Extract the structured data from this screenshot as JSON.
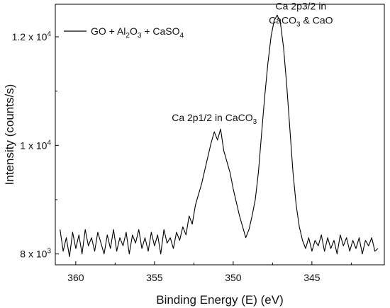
{
  "chart_data": {
    "type": "line",
    "xlabel": "Binding Energy (E) (eV)",
    "ylabel": "Intensity (counts/s)",
    "xlim": [
      361.3,
      340.4
    ],
    "ylim": [
      7800,
      12600
    ],
    "x_reversed": true,
    "xticks": [
      360,
      355,
      350,
      345
    ],
    "xtick_labels": [
      "360",
      "355",
      "350",
      "345"
    ],
    "yticks": [
      8000,
      10000,
      12000
    ],
    "ytick_labels": [
      {
        "base": "8 x 10",
        "exp": "3"
      },
      {
        "base": "1 x 10",
        "exp": "4"
      },
      {
        "base": "1.2 x 10",
        "exp": "4"
      }
    ],
    "legend": {
      "placement": "top-left",
      "label_parts": [
        {
          "text": "GO + Al",
          "sub": false
        },
        {
          "text": "2",
          "sub": true
        },
        {
          "text": "O",
          "sub": false
        },
        {
          "text": "3",
          "sub": true
        },
        {
          "text": " + CaSO",
          "sub": false
        },
        {
          "text": "4",
          "sub": true
        }
      ]
    },
    "annotations": [
      {
        "id": "ca-2p12",
        "x": 351.2,
        "y": 10450,
        "lines": [
          [
            {
              "text": "Ca 2p1/2 in CaCO",
              "sub": false
            },
            {
              "text": "3",
              "sub": true
            }
          ]
        ]
      },
      {
        "id": "ca-2p32",
        "x": 345.7,
        "y": 12500,
        "lines": [
          [
            {
              "text": "Ca 2p3/2 in",
              "sub": false
            }
          ],
          [
            {
              "text": "CaCO",
              "sub": false
            },
            {
              "text": "3",
              "sub": true
            },
            {
              "text": " & CaO",
              "sub": false
            }
          ]
        ]
      }
    ],
    "series": [
      {
        "color": "#000000",
        "x": [
          361.0,
          360.8,
          360.6,
          360.4,
          360.2,
          360.0,
          359.8,
          359.6,
          359.4,
          359.2,
          359.0,
          358.8,
          358.6,
          358.4,
          358.2,
          358.0,
          357.8,
          357.6,
          357.4,
          357.2,
          357.0,
          356.8,
          356.6,
          356.4,
          356.2,
          356.0,
          355.8,
          355.6,
          355.4,
          355.2,
          355.0,
          354.8,
          354.6,
          354.4,
          354.2,
          354.0,
          353.8,
          353.6,
          353.4,
          353.2,
          353.0,
          352.8,
          352.6,
          352.4,
          352.2,
          352.0,
          351.8,
          351.6,
          351.4,
          351.2,
          351.0,
          350.8,
          350.6,
          350.4,
          350.2,
          350.0,
          349.8,
          349.6,
          349.4,
          349.2,
          349.0,
          348.8,
          348.6,
          348.4,
          348.2,
          348.0,
          347.8,
          347.6,
          347.4,
          347.2,
          347.0,
          346.8,
          346.6,
          346.4,
          346.2,
          346.0,
          345.8,
          345.6,
          345.4,
          345.2,
          345.0,
          344.8,
          344.6,
          344.4,
          344.2,
          344.0,
          343.8,
          343.6,
          343.4,
          343.2,
          343.0,
          342.8,
          342.6,
          342.4,
          342.2,
          342.0,
          341.8,
          341.6,
          341.4,
          341.2,
          341.0,
          340.8
        ],
        "y": [
          8450,
          8050,
          8300,
          7950,
          8400,
          8100,
          8350,
          8000,
          8450,
          8150,
          8300,
          8050,
          8400,
          8200,
          8000,
          8350,
          8100,
          8450,
          8050,
          8300,
          8150,
          8400,
          8000,
          8350,
          8200,
          8450,
          8100,
          8300,
          8050,
          8400,
          8150,
          8350,
          8000,
          8450,
          8200,
          8300,
          8100,
          8400,
          8250,
          8500,
          8350,
          8700,
          8550,
          8900,
          9100,
          9300,
          9550,
          9800,
          10050,
          10250,
          10100,
          10300,
          9900,
          9700,
          9500,
          9200,
          8950,
          8700,
          8500,
          8300,
          8450,
          8700,
          9000,
          9500,
          10200,
          10900,
          11500,
          12000,
          12300,
          12400,
          12250,
          11800,
          11100,
          10300,
          9500,
          8900,
          8500,
          8250,
          8100,
          8300,
          8050,
          8250,
          8150,
          8350,
          8050,
          8300,
          8100,
          8250,
          8000,
          8350,
          8150,
          8300,
          8050,
          8250,
          8100,
          8300,
          8000,
          8250,
          8150,
          8300,
          8050,
          8100
        ]
      }
    ]
  }
}
